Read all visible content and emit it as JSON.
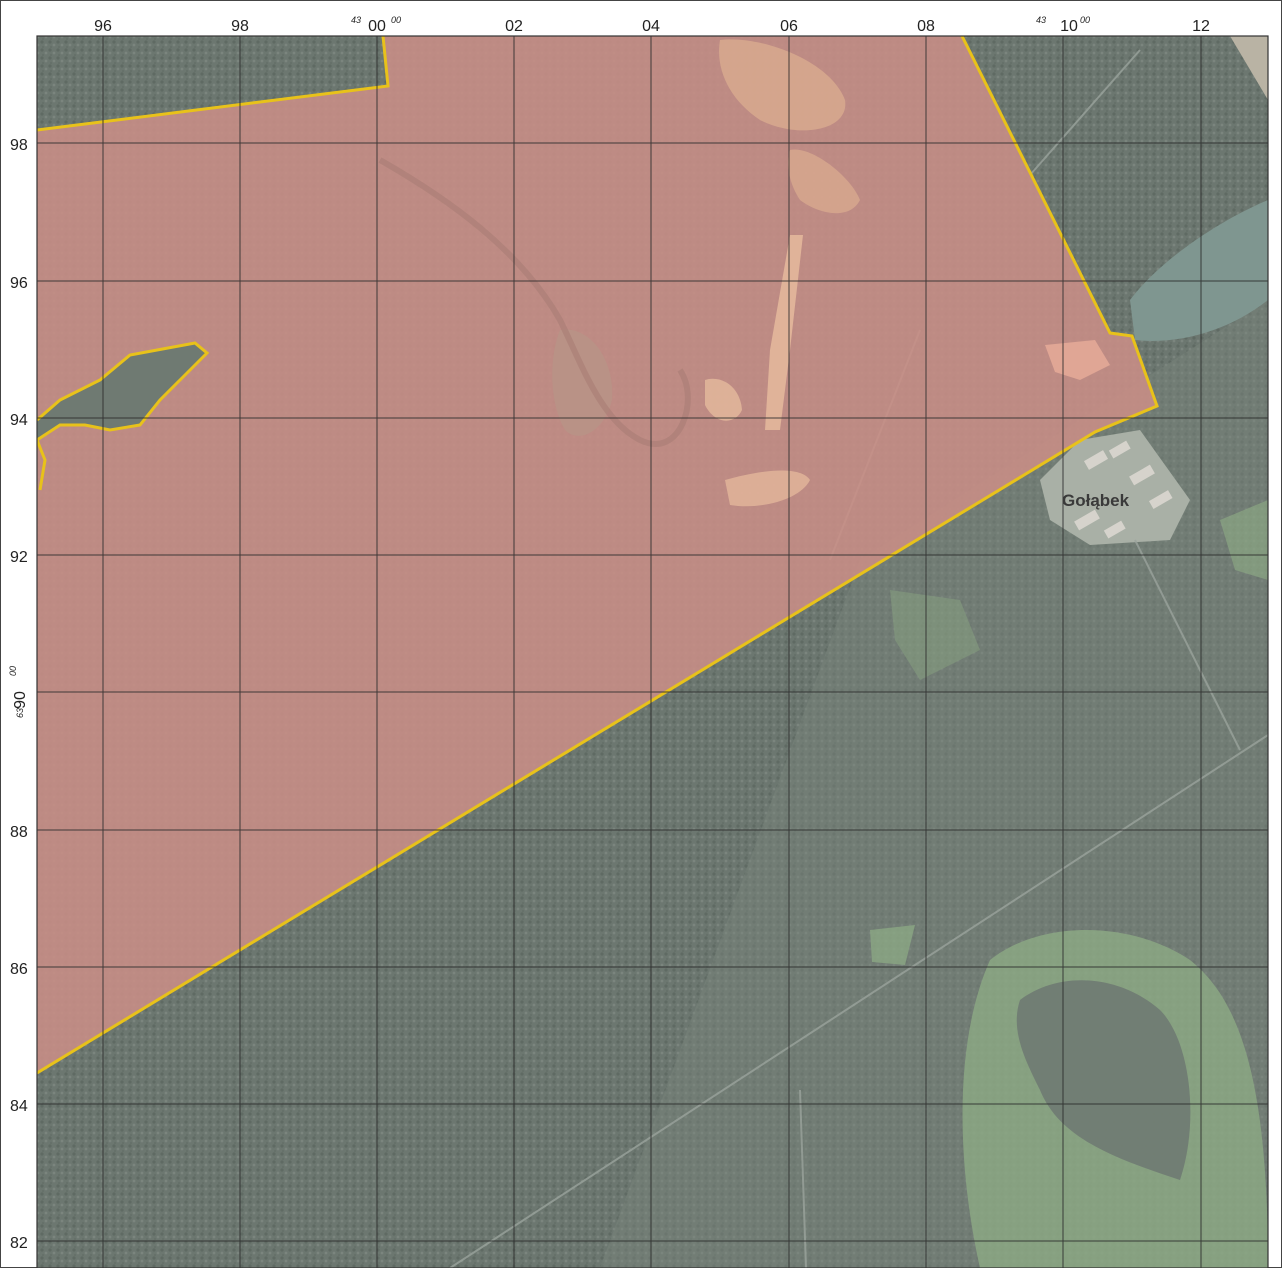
{
  "map": {
    "grid": {
      "x_ticks": [
        "96",
        "98",
        "00",
        "02",
        "04",
        "06",
        "08",
        "10",
        "12"
      ],
      "y_ticks": [
        "98",
        "96",
        "94",
        "92",
        "90",
        "88",
        "86",
        "84",
        "82"
      ],
      "x_major_prefix": "43",
      "x_major_suffix": "00",
      "x_secondary_prefix": "43",
      "x_secondary_suffix": "00",
      "y_major_prefix": "63",
      "y_major_suffix": "00"
    },
    "place_label": "Gołąbek",
    "colors": {
      "forest": "#6f7a72",
      "area_fill": "#c98e86",
      "boundary": "#e8c21a",
      "grid": "#2a2a2a",
      "clearing": "#8fae86",
      "water": "#7f9690"
    }
  }
}
